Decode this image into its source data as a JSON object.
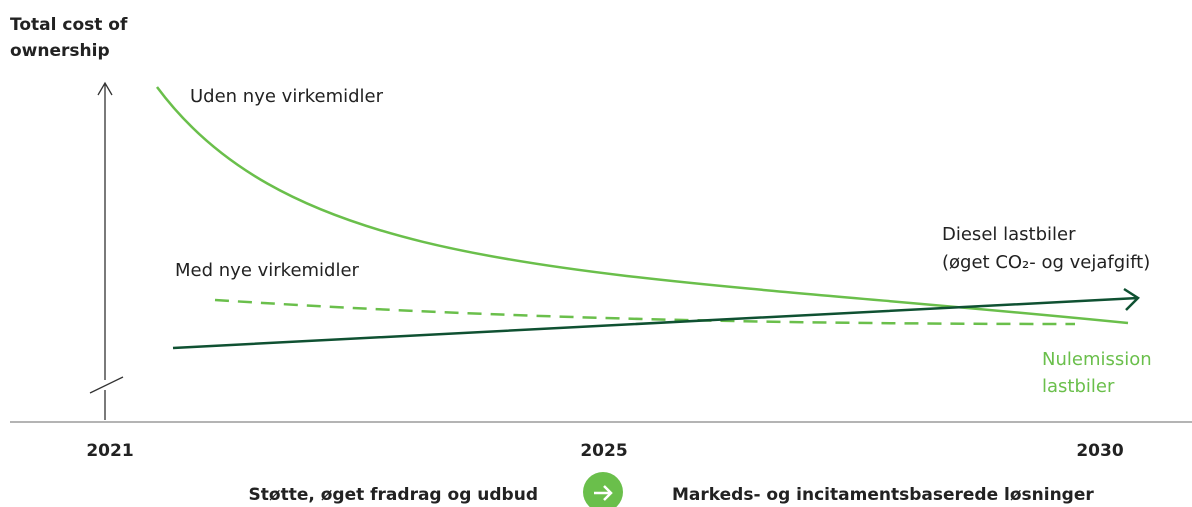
{
  "y_axis_title": [
    "Total cost of",
    "ownership"
  ],
  "curves": {
    "without": "Uden nye virkemidler",
    "with": "Med nye virkemidler",
    "diesel": [
      "Diesel lastbiler",
      "(øget CO₂- og vejafgift)"
    ],
    "zero_emission": [
      "Nulemission",
      "lastbiler"
    ]
  },
  "x_labels": [
    "2021",
    "2025",
    "2030"
  ],
  "footer": {
    "left": "Støtte, øget fradrag og udbud",
    "right": "Markeds- og incitamentsbaserede løsninger"
  }
}
